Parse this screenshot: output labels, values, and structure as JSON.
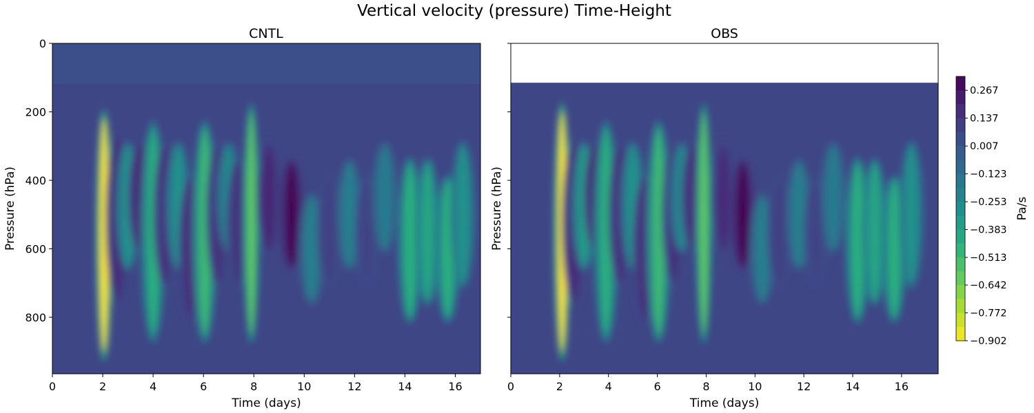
{
  "figure": {
    "title": "Vertical velocity (pressure) Time-Height"
  },
  "chart_data": [
    {
      "type": "heatmap",
      "title": "CNTL",
      "xlabel": "Time (days)",
      "ylabel": "Pressure (hPa)",
      "xlim": [
        0,
        17
      ],
      "ylim": [
        965,
        0
      ],
      "y_inverted": true,
      "xticks": [
        0,
        2,
        4,
        6,
        8,
        10,
        12,
        14,
        16
      ],
      "yticks": [
        0,
        200,
        400,
        600,
        800
      ],
      "data_top_pressure": 0,
      "colormap": "viridis_r",
      "features": [
        {
          "t": 2.05,
          "w": -0.902,
          "p_top": 220,
          "p_bot": 900
        },
        {
          "t": 2.6,
          "w": 0.18,
          "p_top": 280,
          "p_bot": 750
        },
        {
          "t": 3.0,
          "w": -0.3,
          "p_top": 300,
          "p_bot": 650
        },
        {
          "t": 3.5,
          "w": 0.2,
          "p_top": 300,
          "p_bot": 600
        },
        {
          "t": 4.0,
          "w": -0.45,
          "p_top": 250,
          "p_bot": 850
        },
        {
          "t": 4.5,
          "w": 0.15,
          "p_top": 300,
          "p_bot": 700
        },
        {
          "t": 5.0,
          "w": -0.3,
          "p_top": 300,
          "p_bot": 650
        },
        {
          "t": 5.5,
          "w": 0.18,
          "p_top": 400,
          "p_bot": 800
        },
        {
          "t": 6.05,
          "w": -0.5,
          "p_top": 250,
          "p_bot": 850
        },
        {
          "t": 6.6,
          "w": 0.15,
          "p_top": 300,
          "p_bot": 700
        },
        {
          "t": 7.0,
          "w": -0.25,
          "p_top": 300,
          "p_bot": 600
        },
        {
          "t": 7.4,
          "w": 0.15,
          "p_top": 350,
          "p_bot": 700
        },
        {
          "t": 7.9,
          "w": -0.6,
          "p_top": 200,
          "p_bot": 850
        },
        {
          "t": 8.6,
          "w": 0.2,
          "p_top": 300,
          "p_bot": 600
        },
        {
          "t": 9.5,
          "w": 0.35,
          "p_top": 350,
          "p_bot": 650
        },
        {
          "t": 10.3,
          "w": -0.2,
          "p_top": 450,
          "p_bot": 750
        },
        {
          "t": 11.0,
          "w": 0.1,
          "p_top": 400,
          "p_bot": 700
        },
        {
          "t": 11.8,
          "w": -0.2,
          "p_top": 350,
          "p_bot": 650
        },
        {
          "t": 12.5,
          "w": 0.08,
          "p_top": 400,
          "p_bot": 700
        },
        {
          "t": 13.2,
          "w": -0.18,
          "p_top": 300,
          "p_bot": 600
        },
        {
          "t": 14.2,
          "w": -0.45,
          "p_top": 350,
          "p_bot": 800
        },
        {
          "t": 14.9,
          "w": -0.4,
          "p_top": 350,
          "p_bot": 750
        },
        {
          "t": 15.7,
          "w": -0.45,
          "p_top": 400,
          "p_bot": 800
        },
        {
          "t": 16.3,
          "w": -0.3,
          "p_top": 300,
          "p_bot": 700
        }
      ]
    },
    {
      "type": "heatmap",
      "title": "OBS",
      "xlabel": "Time (days)",
      "ylabel": "Pressure (hPa)",
      "xlim": [
        0,
        17.5
      ],
      "ylim": [
        965,
        0
      ],
      "y_inverted": true,
      "xticks": [
        0,
        2,
        4,
        6,
        8,
        10,
        12,
        14,
        16
      ],
      "yticks": [
        0,
        200,
        400,
        600,
        800
      ],
      "data_top_pressure": 115,
      "colormap": "viridis_r",
      "features": [
        {
          "t": 2.1,
          "w": -0.902,
          "p_top": 200,
          "p_bot": 900
        },
        {
          "t": 2.6,
          "w": 0.18,
          "p_top": 300,
          "p_bot": 750
        },
        {
          "t": 3.0,
          "w": -0.35,
          "p_top": 300,
          "p_bot": 650
        },
        {
          "t": 3.5,
          "w": 0.22,
          "p_top": 300,
          "p_bot": 600
        },
        {
          "t": 3.9,
          "w": -0.45,
          "p_top": 250,
          "p_bot": 850
        },
        {
          "t": 4.5,
          "w": 0.15,
          "p_top": 300,
          "p_bot": 700
        },
        {
          "t": 5.0,
          "w": -0.3,
          "p_top": 300,
          "p_bot": 650
        },
        {
          "t": 5.5,
          "w": 0.18,
          "p_top": 400,
          "p_bot": 800
        },
        {
          "t": 6.05,
          "w": -0.5,
          "p_top": 250,
          "p_bot": 850
        },
        {
          "t": 6.7,
          "w": 0.15,
          "p_top": 300,
          "p_bot": 700
        },
        {
          "t": 7.0,
          "w": -0.25,
          "p_top": 300,
          "p_bot": 600
        },
        {
          "t": 7.5,
          "w": 0.18,
          "p_top": 300,
          "p_bot": 600
        },
        {
          "t": 7.9,
          "w": -0.6,
          "p_top": 200,
          "p_bot": 850
        },
        {
          "t": 8.7,
          "w": 0.18,
          "p_top": 300,
          "p_bot": 600
        },
        {
          "t": 9.5,
          "w": 0.35,
          "p_top": 350,
          "p_bot": 650
        },
        {
          "t": 10.3,
          "w": -0.2,
          "p_top": 450,
          "p_bot": 750
        },
        {
          "t": 11.0,
          "w": 0.1,
          "p_top": 400,
          "p_bot": 700
        },
        {
          "t": 11.8,
          "w": -0.2,
          "p_top": 350,
          "p_bot": 650
        },
        {
          "t": 12.5,
          "w": 0.08,
          "p_top": 400,
          "p_bot": 700
        },
        {
          "t": 13.2,
          "w": -0.18,
          "p_top": 300,
          "p_bot": 600
        },
        {
          "t": 14.2,
          "w": -0.45,
          "p_top": 350,
          "p_bot": 800
        },
        {
          "t": 14.9,
          "w": -0.4,
          "p_top": 350,
          "p_bot": 750
        },
        {
          "t": 15.7,
          "w": -0.45,
          "p_top": 400,
          "p_bot": 800
        },
        {
          "t": 16.4,
          "w": -0.3,
          "p_top": 300,
          "p_bot": 700
        }
      ]
    }
  ],
  "colorbar": {
    "label": "Pa/s",
    "min": -0.902,
    "max": 0.332,
    "ticks": [
      -0.902,
      -0.772,
      -0.642,
      -0.513,
      -0.383,
      -0.253,
      -0.123,
      0.007,
      0.137,
      0.267
    ],
    "tick_labels": [
      "−0.902",
      "−0.772",
      "−0.642",
      "−0.513",
      "−0.383",
      "−0.253",
      "−0.123",
      "0.007",
      "0.137",
      "0.267"
    ],
    "levels": 19
  }
}
